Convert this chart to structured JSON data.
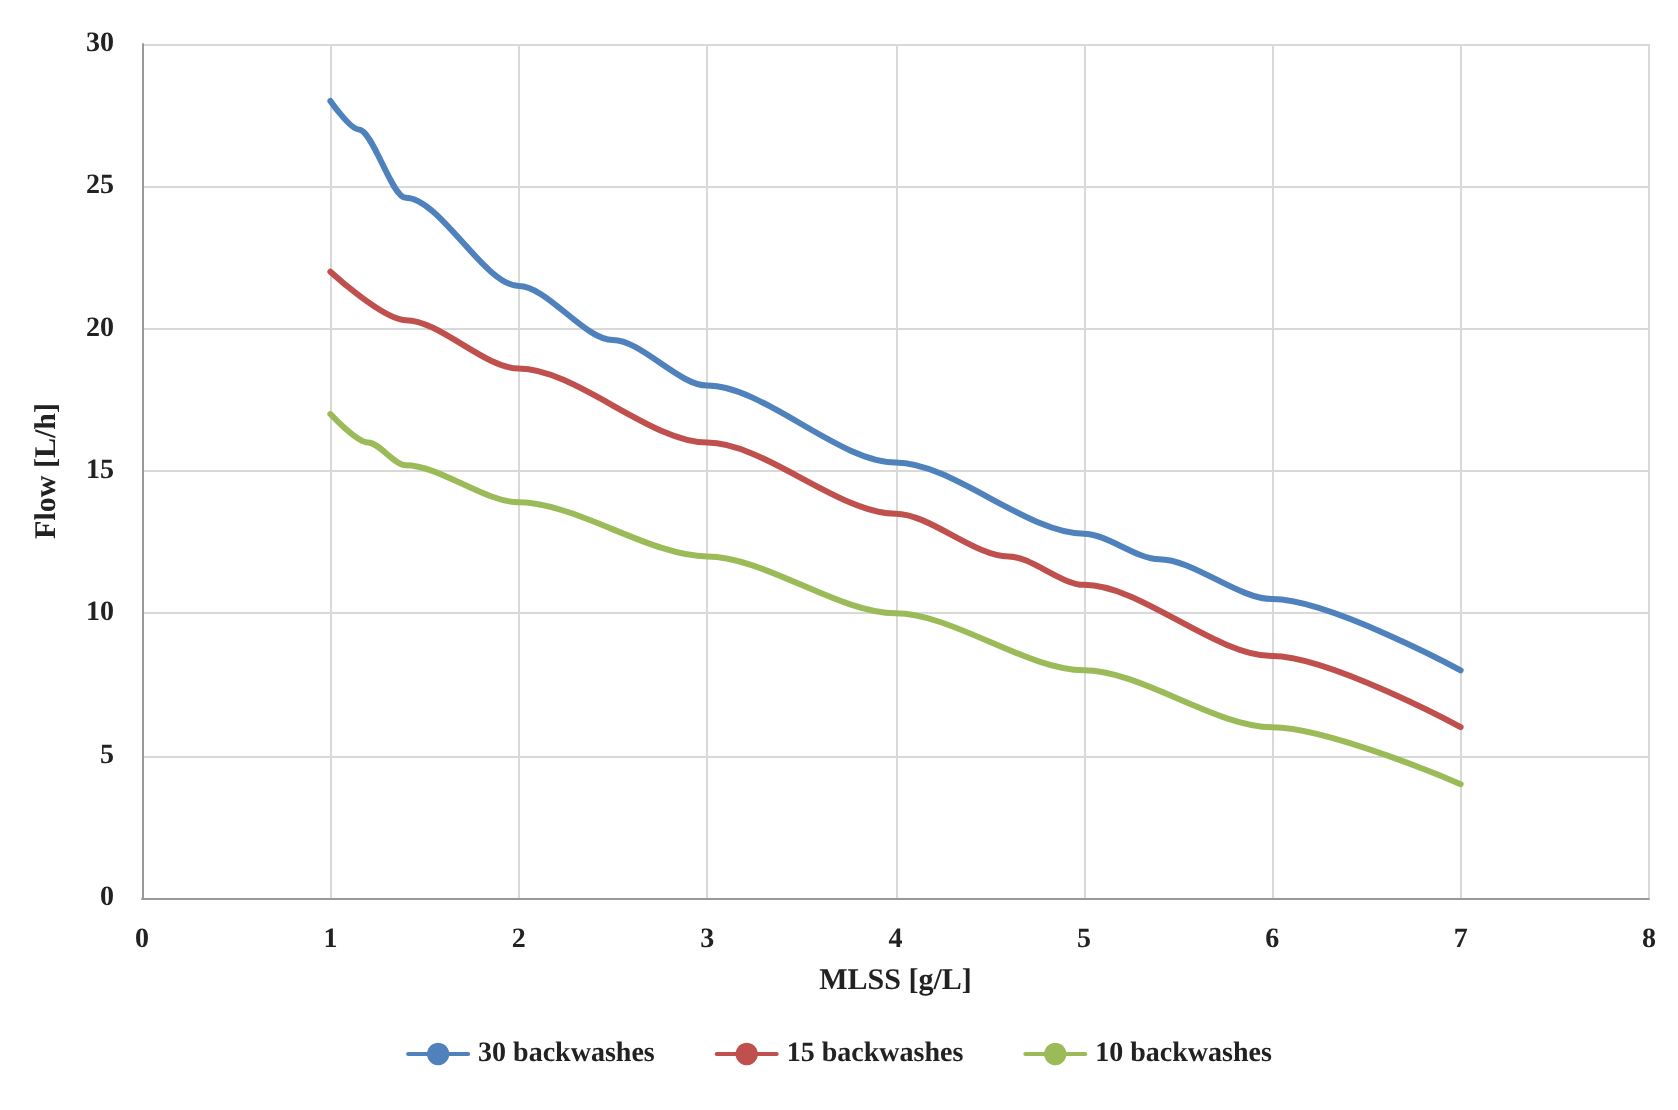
{
  "chart_data": {
    "type": "line",
    "xlabel": "MLSS [g/L]",
    "ylabel": "Flow [L/h]",
    "xlim": [
      0,
      8
    ],
    "xticks": [
      0,
      1,
      2,
      3,
      4,
      5,
      6,
      7,
      8
    ],
    "ylim": [
      0,
      30
    ],
    "yticks": [
      0,
      5,
      10,
      15,
      20,
      25,
      30
    ],
    "grid": true,
    "legend": "bottom",
    "marker": "none",
    "line_style": "solid",
    "series": [
      {
        "name": "30 backwashes",
        "color": "#4f81bd",
        "x": [
          1,
          1.15,
          1.4,
          2,
          2.5,
          3,
          4,
          5,
          5.4,
          6,
          7
        ],
        "values": [
          28,
          27,
          24.6,
          21.5,
          19.6,
          18,
          15.3,
          12.8,
          11.9,
          10.5,
          8
        ]
      },
      {
        "name": "15 backwashes",
        "color": "#c0504d",
        "x": [
          1,
          1.4,
          2,
          3,
          4,
          4.6,
          5,
          6,
          7
        ],
        "values": [
          22,
          20.3,
          18.6,
          16,
          13.5,
          12,
          11,
          8.5,
          6
        ]
      },
      {
        "name": "10 backwashes",
        "color": "#9bbb59",
        "x": [
          1,
          1.2,
          1.4,
          2,
          3,
          4,
          5,
          6,
          7
        ],
        "values": [
          17,
          16,
          15.2,
          13.9,
          12,
          10,
          8,
          6,
          4
        ]
      }
    ]
  }
}
